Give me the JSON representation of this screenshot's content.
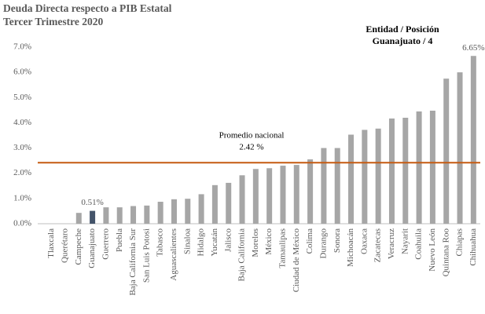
{
  "chart_data": {
    "type": "bar",
    "title": "Deuda Directa respecto a PIB Estatal",
    "subtitle": "Tercer Trimestre  2020",
    "annotation": {
      "title": "Entidad / Posición",
      "text": "Guanajuato / 4"
    },
    "categories": [
      "Tlaxcala",
      "Querétaro",
      "Campeche",
      "Guanajuato",
      "Guerrero",
      "Puebla",
      "Baja California Sur",
      "San Luis Potosi",
      "Tabasco",
      "Aguascalientes",
      "Sinaloa",
      "Hidalgo",
      "Yucatán",
      "Jalisco",
      "Baja California",
      "Morelos",
      "México",
      "Tamaulipas",
      "Ciudad de México",
      "Colima",
      "Durango",
      "Sonora",
      "Michoacán",
      "Oaxaca",
      "Zacatecas",
      "Veracruz",
      "Nayarit",
      "Coahuila",
      "Nuevo León",
      "Quintana Roo",
      "Chiapas",
      "Chihuahua"
    ],
    "values": [
      0,
      0,
      0.43,
      0.51,
      0.65,
      0.65,
      0.7,
      0.72,
      0.87,
      0.97,
      0.99,
      1.17,
      1.53,
      1.62,
      1.92,
      2.17,
      2.2,
      2.3,
      2.33,
      2.55,
      3.0,
      3.0,
      3.53,
      3.72,
      3.77,
      4.17,
      4.2,
      4.45,
      4.48,
      5.75,
      6.0,
      6.65
    ],
    "value_labels": [
      null,
      null,
      null,
      "0.51%",
      null,
      null,
      null,
      null,
      null,
      null,
      null,
      null,
      null,
      null,
      null,
      null,
      null,
      null,
      null,
      null,
      null,
      null,
      null,
      null,
      null,
      null,
      null,
      null,
      null,
      null,
      null,
      "6.65%"
    ],
    "colors": [
      "#a6a6a6",
      "#a6a6a6",
      "#a6a6a6",
      "#44546a",
      "#a6a6a6",
      "#a6a6a6",
      "#a6a6a6",
      "#a6a6a6",
      "#a6a6a6",
      "#a6a6a6",
      "#a6a6a6",
      "#a6a6a6",
      "#a6a6a6",
      "#a6a6a6",
      "#a6a6a6",
      "#a6a6a6",
      "#a6a6a6",
      "#a6a6a6",
      "#a6a6a6",
      "#a6a6a6",
      "#a6a6a6",
      "#a6a6a6",
      "#a6a6a6",
      "#a6a6a6",
      "#a6a6a6",
      "#a6a6a6",
      "#a6a6a6",
      "#a6a6a6",
      "#a6a6a6",
      "#a6a6a6",
      "#a6a6a6",
      "#a6a6a6"
    ],
    "reference_line": {
      "value": 2.42,
      "color": "#c55a11",
      "label": "Promedio nacional",
      "value_label": "2.42 %"
    },
    "ylim": [
      0,
      7
    ],
    "yticks": [
      {
        "value": 0,
        "label": "0.0%"
      },
      {
        "value": 1,
        "label": "1.0%"
      },
      {
        "value": 2,
        "label": "2.0%"
      },
      {
        "value": 3,
        "label": "3.0%"
      },
      {
        "value": 4,
        "label": "4.0%"
      },
      {
        "value": 5,
        "label": "5.0%"
      },
      {
        "value": 6,
        "label": "6.0%"
      },
      {
        "value": 7,
        "label": "7.0%"
      }
    ],
    "grid": false
  }
}
